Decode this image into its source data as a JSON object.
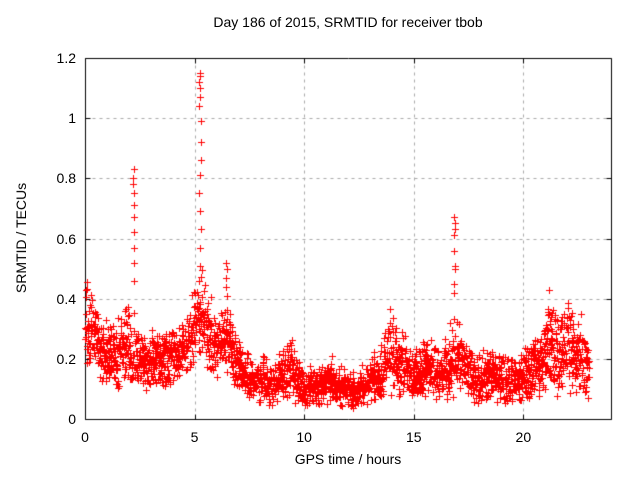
{
  "chart_data": {
    "type": "scatter",
    "title": "Day 186 of 2015, SRMTID for receiver tbob",
    "xlabel": "GPS time / hours",
    "ylabel": "SRMTID / TECUs",
    "xlim": [
      0,
      24
    ],
    "ylim": [
      0,
      1.2
    ],
    "xticks": {
      "values": [
        0,
        5,
        10,
        15,
        20
      ],
      "labels": [
        "0",
        "5",
        "10",
        "15",
        "20"
      ]
    },
    "yticks": {
      "values": [
        0,
        0.2,
        0.4,
        0.6,
        0.8,
        1,
        1.2
      ],
      "labels": [
        "0",
        "0.2",
        "0.4",
        "0.6",
        "0.8",
        "1",
        "1.2"
      ]
    },
    "grid": {
      "show": true,
      "style": "dashed",
      "color": "#a9a9a9"
    },
    "frame_color": "#000000",
    "marker": {
      "glyph": "+",
      "size": 7,
      "color": "#ff0000"
    },
    "legend": null,
    "sampling": {
      "start_hour": 0,
      "end_hour": 23.0,
      "steps_per_hour": 60,
      "points_per_step_max": 3,
      "seed": 186
    },
    "baseline_envelope": [
      [
        0.0,
        0.18,
        0.44
      ],
      [
        0.4,
        0.15,
        0.4
      ],
      [
        0.8,
        0.12,
        0.33
      ],
      [
        1.3,
        0.1,
        0.28
      ],
      [
        1.8,
        0.12,
        0.36
      ],
      [
        2.1,
        0.12,
        0.34
      ],
      [
        2.5,
        0.1,
        0.28
      ],
      [
        3.0,
        0.1,
        0.27
      ],
      [
        3.6,
        0.11,
        0.28
      ],
      [
        4.2,
        0.13,
        0.3
      ],
      [
        4.7,
        0.16,
        0.35
      ],
      [
        5.0,
        0.18,
        0.42
      ],
      [
        5.3,
        0.2,
        0.5
      ],
      [
        5.7,
        0.15,
        0.4
      ],
      [
        6.1,
        0.13,
        0.33
      ],
      [
        6.5,
        0.14,
        0.38
      ],
      [
        6.9,
        0.1,
        0.28
      ],
      [
        7.3,
        0.06,
        0.2
      ],
      [
        7.9,
        0.05,
        0.2
      ],
      [
        8.6,
        0.04,
        0.17
      ],
      [
        9.3,
        0.06,
        0.26
      ],
      [
        9.9,
        0.04,
        0.16
      ],
      [
        10.5,
        0.05,
        0.17
      ],
      [
        11.1,
        0.05,
        0.2
      ],
      [
        11.7,
        0.04,
        0.16
      ],
      [
        12.3,
        0.04,
        0.15
      ],
      [
        12.9,
        0.05,
        0.18
      ],
      [
        13.4,
        0.06,
        0.22
      ],
      [
        13.8,
        0.08,
        0.34
      ],
      [
        14.2,
        0.08,
        0.32
      ],
      [
        14.7,
        0.06,
        0.24
      ],
      [
        15.2,
        0.06,
        0.21
      ],
      [
        15.8,
        0.07,
        0.27
      ],
      [
        16.3,
        0.06,
        0.22
      ],
      [
        16.8,
        0.08,
        0.34
      ],
      [
        17.3,
        0.08,
        0.28
      ],
      [
        17.8,
        0.05,
        0.21
      ],
      [
        18.4,
        0.06,
        0.24
      ],
      [
        19.0,
        0.05,
        0.2
      ],
      [
        19.6,
        0.05,
        0.2
      ],
      [
        20.2,
        0.06,
        0.24
      ],
      [
        20.8,
        0.08,
        0.28
      ],
      [
        21.2,
        0.1,
        0.42
      ],
      [
        21.6,
        0.08,
        0.32
      ],
      [
        22.0,
        0.09,
        0.38
      ],
      [
        22.4,
        0.08,
        0.34
      ],
      [
        22.7,
        0.07,
        0.32
      ],
      [
        23.0,
        0.05,
        0.22
      ]
    ],
    "spikes": [
      {
        "hour": 2.22,
        "values": [
          0.83,
          0.8,
          0.78,
          0.75,
          0.71,
          0.67,
          0.62,
          0.57,
          0.52,
          0.46
        ]
      },
      {
        "hour": 5.25,
        "values": [
          1.15,
          1.14,
          1.12,
          1.1,
          1.07,
          1.04,
          0.99,
          0.92,
          0.86,
          0.81,
          0.75,
          0.69,
          0.63,
          0.57,
          0.51,
          0.46
        ]
      },
      {
        "hour": 6.45,
        "values": [
          0.52,
          0.5,
          0.47,
          0.44,
          0.41
        ]
      },
      {
        "hour": 16.85,
        "values": [
          0.67,
          0.65,
          0.63,
          0.61,
          0.56,
          0.51,
          0.5,
          0.45,
          0.42
        ]
      }
    ]
  }
}
